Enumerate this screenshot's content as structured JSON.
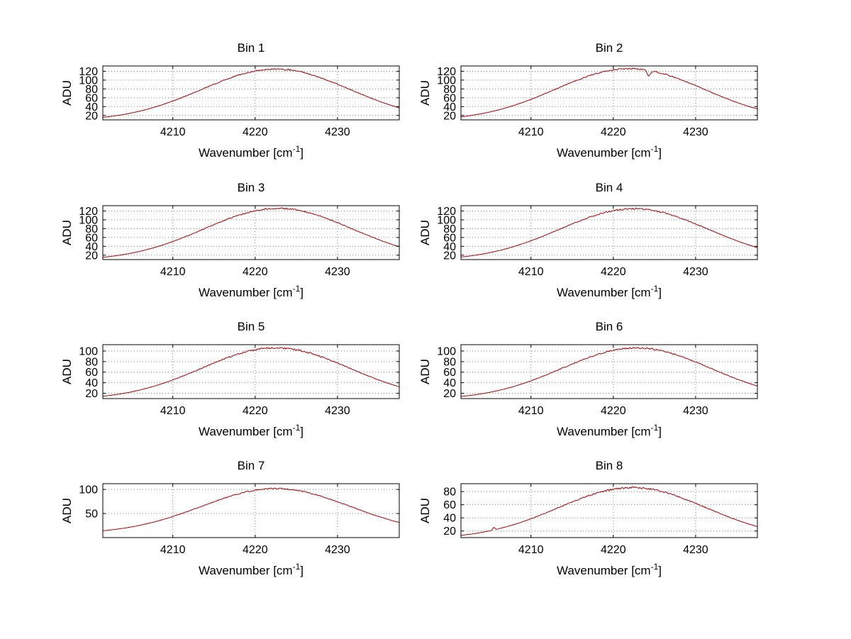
{
  "figure_title": "",
  "chart_data": {
    "type": "line",
    "layout": {
      "rows": 4,
      "cols": 2
    },
    "ylabel": "ADU",
    "xlabel": {
      "base": "Wavenumber [cm",
      "sup": "-1",
      "close": "]"
    },
    "x": {
      "lim": [
        4201.5,
        4237.5
      ],
      "ticks": [
        4210,
        4220,
        4230
      ]
    },
    "line_color": "#a40000",
    "grid_color": "#808080",
    "axis_color": "#000000",
    "plots": [
      {
        "title": "Bin 1",
        "yticks": [
          20,
          40,
          60,
          80,
          100,
          120
        ],
        "ylim": [
          10,
          132
        ],
        "gaussian": {
          "center": 4222.5,
          "sigma": 9.0,
          "amp": 117,
          "baseline": 8
        },
        "noise": 3.0,
        "dips": []
      },
      {
        "title": "Bin 2",
        "yticks": [
          20,
          40,
          60,
          80,
          100,
          120
        ],
        "ylim": [
          10,
          132
        ],
        "gaussian": {
          "center": 4222.0,
          "sigma": 9.0,
          "amp": 118,
          "baseline": 8
        },
        "noise": 3.0,
        "dips": [
          {
            "x": 4224.3,
            "depth": 13,
            "w": 0.18
          }
        ]
      },
      {
        "title": "Bin 3",
        "yticks": [
          20,
          40,
          60,
          80,
          100,
          120
        ],
        "ylim": [
          10,
          132
        ],
        "gaussian": {
          "center": 4222.8,
          "sigma": 9.0,
          "amp": 118,
          "baseline": 8
        },
        "noise": 3.2,
        "dips": []
      },
      {
        "title": "Bin 4",
        "yticks": [
          20,
          40,
          60,
          80,
          100,
          120
        ],
        "ylim": [
          10,
          132
        ],
        "gaussian": {
          "center": 4222.5,
          "sigma": 9.0,
          "amp": 117,
          "baseline": 8
        },
        "noise": 3.0,
        "dips": []
      },
      {
        "title": "Bin 5",
        "yticks": [
          20,
          40,
          60,
          80,
          100
        ],
        "ylim": [
          10,
          112
        ],
        "gaussian": {
          "center": 4222.5,
          "sigma": 9.0,
          "amp": 98,
          "baseline": 8
        },
        "noise": 3.0,
        "dips": []
      },
      {
        "title": "Bin 6",
        "yticks": [
          20,
          40,
          60,
          80,
          100
        ],
        "ylim": [
          10,
          112
        ],
        "gaussian": {
          "center": 4222.8,
          "sigma": 9.0,
          "amp": 98,
          "baseline": 8
        },
        "noise": 3.0,
        "dips": []
      },
      {
        "title": "Bin 7",
        "yticks": [
          50,
          100
        ],
        "ylim": [
          0,
          112
        ],
        "gaussian": {
          "center": 4222.5,
          "sigma": 9.0,
          "amp": 94,
          "baseline": 8
        },
        "noise": 2.6,
        "dips": []
      },
      {
        "title": "Bin 8",
        "yticks": [
          20,
          40,
          60,
          80
        ],
        "ylim": [
          10,
          92
        ],
        "gaussian": {
          "center": 4222.3,
          "sigma": 9.0,
          "amp": 78,
          "baseline": 8
        },
        "noise": 2.6,
        "dips": [
          {
            "x": 4205.5,
            "depth": -4,
            "w": 0.12
          }
        ]
      }
    ]
  }
}
